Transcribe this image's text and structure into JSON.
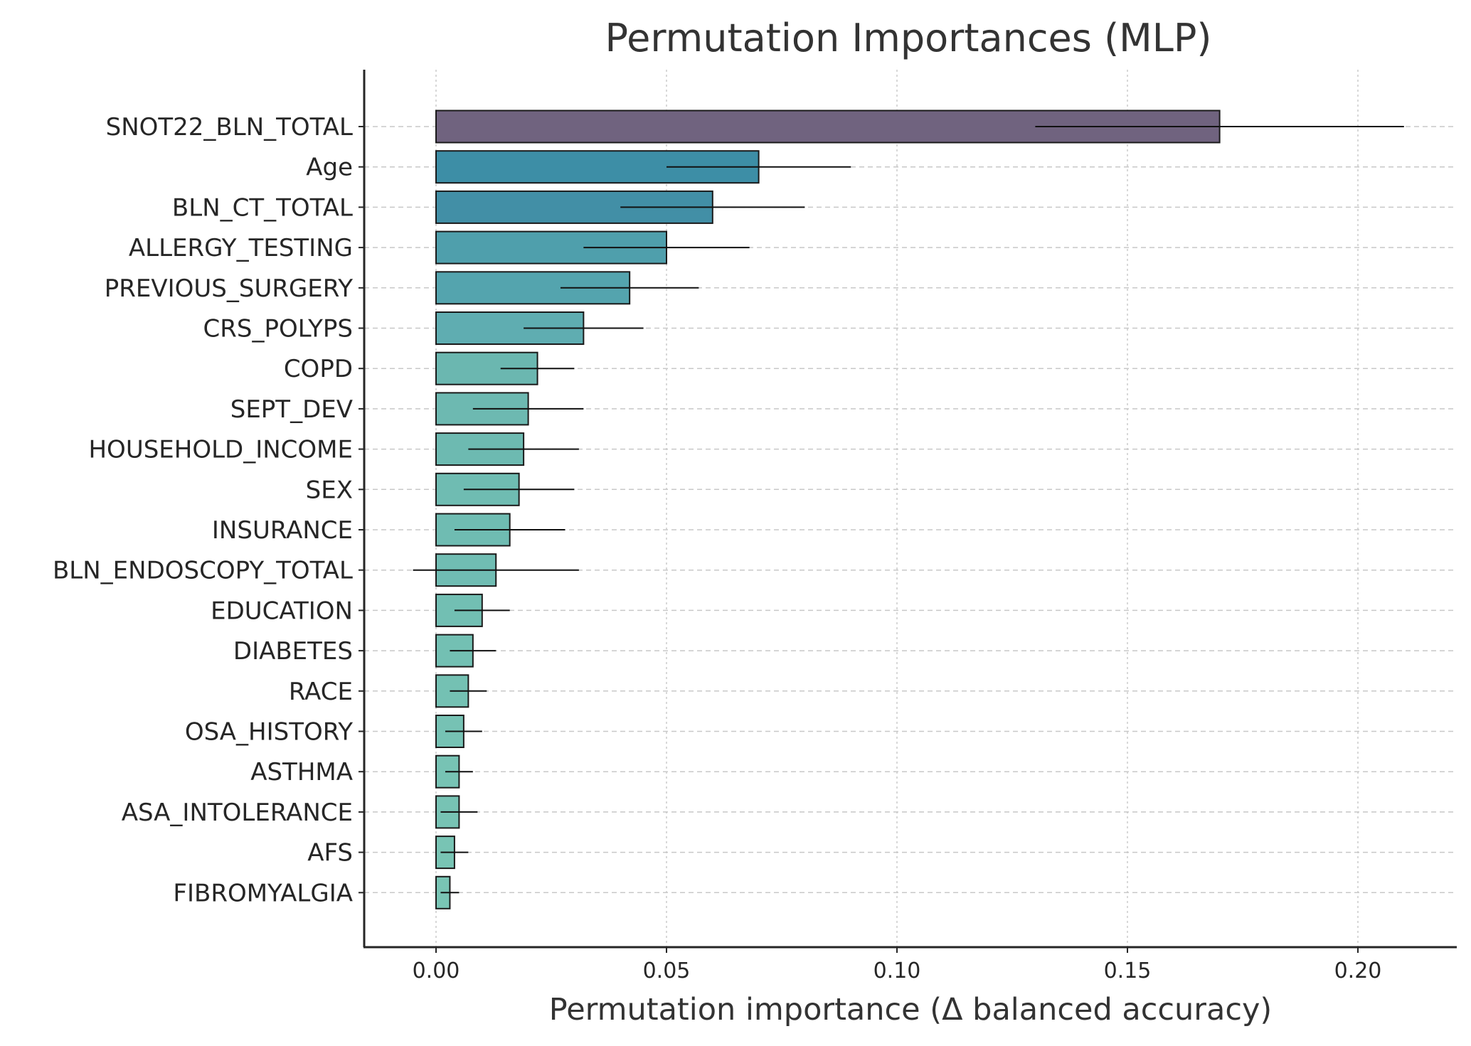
{
  "chart_data": {
    "type": "bar",
    "orientation": "horizontal",
    "title": "Permutation Importances (MLP)",
    "xlabel": "Permutation importance (Δ balanced accuracy)",
    "ylabel": "",
    "xlim": [
      -0.016,
      0.221
    ],
    "xticks": [
      0.0,
      0.05,
      0.1,
      0.15,
      0.2
    ],
    "xtick_labels": [
      "0.00",
      "0.05",
      "0.10",
      "0.15",
      "0.20"
    ],
    "grid": true,
    "legend": "none",
    "categories": [
      "SNOT22_BLN_TOTAL",
      "Age",
      "BLN_CT_TOTAL",
      "ALLERGY_TESTING",
      "PREVIOUS_SURGERY",
      "CRS_POLYPS",
      "COPD",
      "SEPT_DEV",
      "HOUSEHOLD_INCOME",
      "SEX",
      "INSURANCE",
      "BLN_ENDOSCOPY_TOTAL",
      "EDUCATION",
      "DIABETES",
      "RACE",
      "OSA_HISTORY",
      "ASTHMA",
      "ASA_INTOLERANCE",
      "AFS",
      "FIBROMYALGIA"
    ],
    "values": [
      0.17,
      0.07,
      0.06,
      0.05,
      0.042,
      0.032,
      0.022,
      0.02,
      0.019,
      0.018,
      0.016,
      0.013,
      0.01,
      0.008,
      0.007,
      0.006,
      0.005,
      0.005,
      0.004,
      0.003
    ],
    "errors": [
      0.04,
      0.02,
      0.02,
      0.018,
      0.015,
      0.013,
      0.008,
      0.012,
      0.012,
      0.012,
      0.012,
      0.018,
      0.006,
      0.005,
      0.004,
      0.004,
      0.003,
      0.004,
      0.003,
      0.002
    ],
    "colors": [
      "#70637f",
      "#3d8ea6",
      "#428fa6",
      "#4f9fac",
      "#54a4ae",
      "#5fadb1",
      "#6bb7b0",
      "#6db9b1",
      "#6dbab1",
      "#6fbcb2",
      "#6fbcb2",
      "#70bdb3",
      "#72bfb3",
      "#73c0b3",
      "#74c1b3",
      "#76c2b4",
      "#77c3b4",
      "#77c3b4",
      "#78c4b4",
      "#79c5b5"
    ]
  }
}
